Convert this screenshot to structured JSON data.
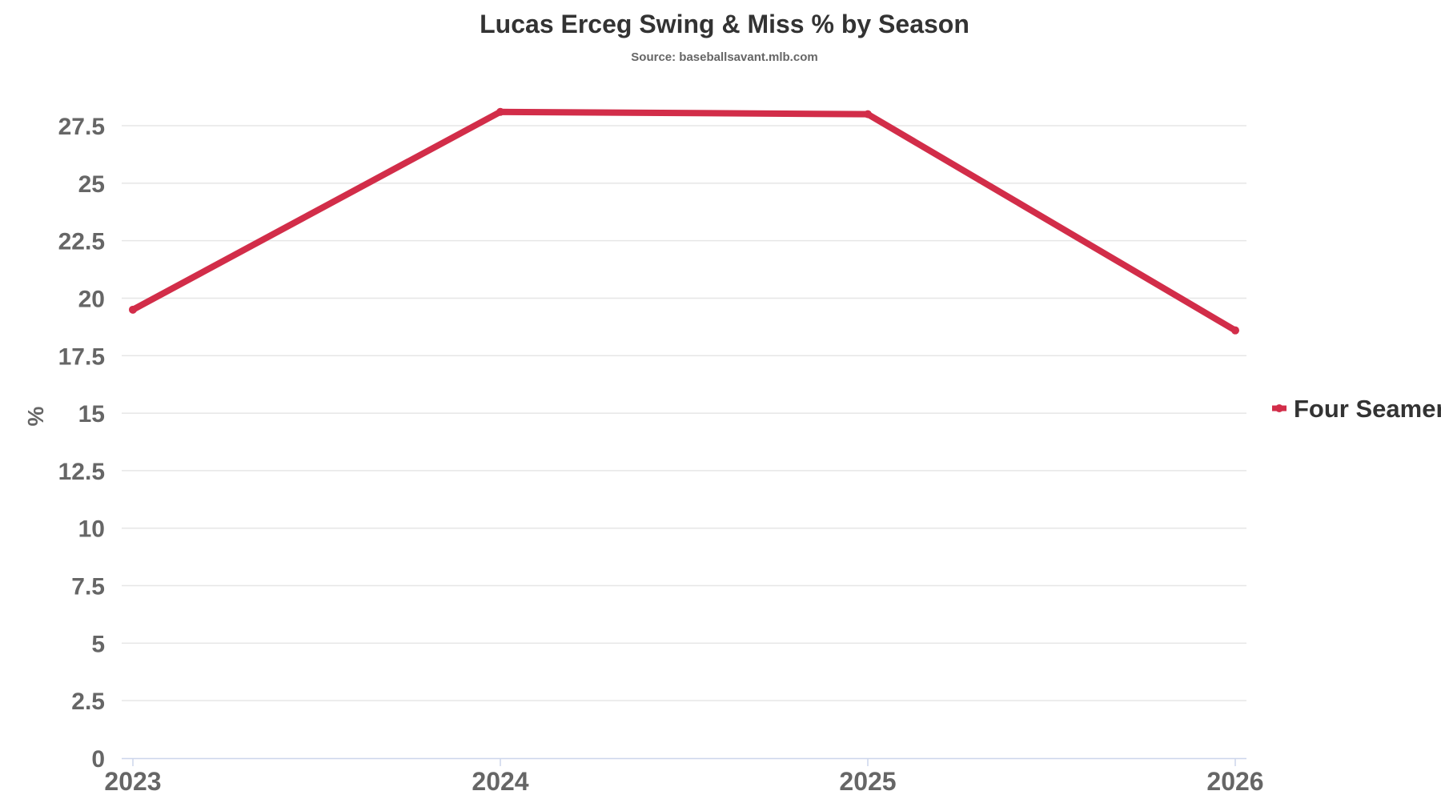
{
  "chart_data": {
    "type": "line",
    "title": "Lucas Erceg Swing & Miss % by Season",
    "subtitle": "Source: baseballsavant.mlb.com",
    "xlabel": "",
    "ylabel": "%",
    "x": [
      "2023",
      "2024",
      "2025",
      "2026"
    ],
    "ylim": [
      0,
      27.5
    ],
    "yticks": [
      0,
      2.5,
      5,
      7.5,
      10,
      12.5,
      15,
      17.5,
      20,
      22.5,
      25,
      27.5
    ],
    "ytick_labels": [
      "0",
      "2.5",
      "5",
      "7.5",
      "10",
      "12.5",
      "15",
      "17.5",
      "20",
      "22.5",
      "25",
      "27.5"
    ],
    "grid": true,
    "legend_position": "right",
    "series": [
      {
        "name": "Four Seamer",
        "color": "#d22d49",
        "values": [
          19.5,
          28.1,
          28.0,
          18.6
        ]
      }
    ]
  }
}
